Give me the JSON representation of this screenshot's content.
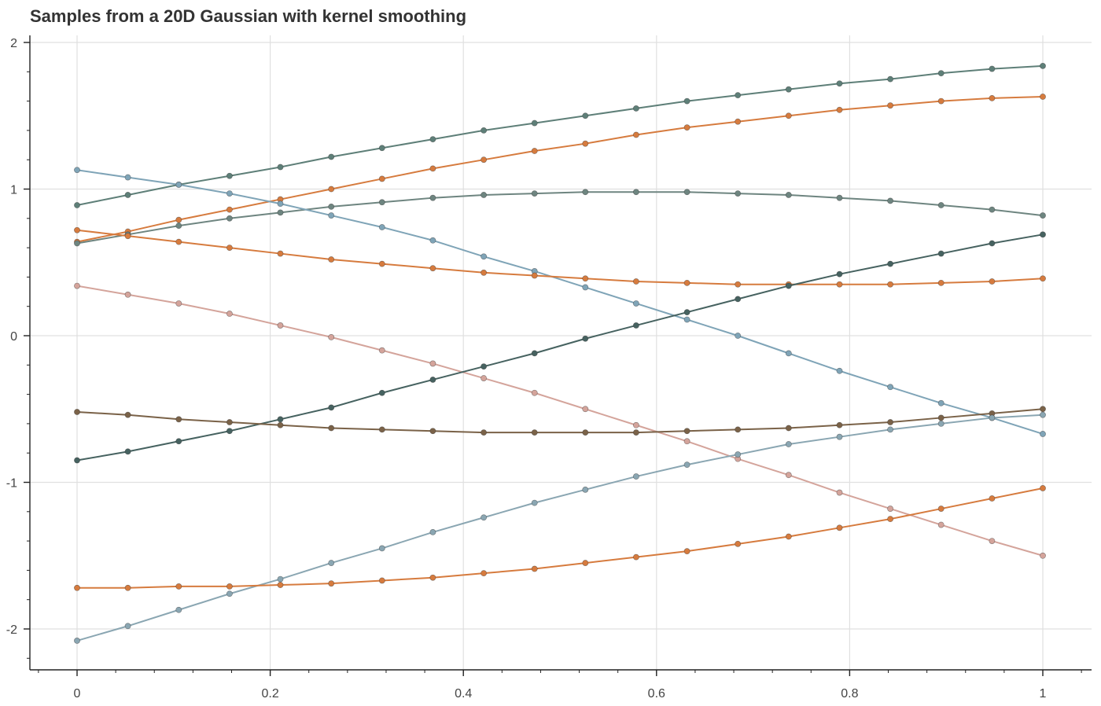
{
  "chart_data": {
    "type": "line",
    "title": "Samples from a 20D Gaussian with kernel smoothing",
    "xlabel": "",
    "ylabel": "",
    "xlim": [
      -0.1,
      1.05
    ],
    "ylim": [
      -2.3,
      2.05
    ],
    "xticks": [
      0,
      0.2,
      0.4,
      0.6,
      0.8,
      1
    ],
    "xtick_labels": [
      "0",
      "0.2",
      "0.4",
      "0.6",
      "0.8",
      "1"
    ],
    "yticks": [
      -2,
      -1,
      0,
      1,
      2
    ],
    "ytick_labels": [
      "-2",
      "-1",
      "0",
      "1",
      "2"
    ],
    "grid": true,
    "x": [
      0,
      0.0526,
      0.1053,
      0.1579,
      0.2105,
      0.2632,
      0.3158,
      0.3684,
      0.4211,
      0.4737,
      0.5263,
      0.5789,
      0.6316,
      0.6842,
      0.7368,
      0.7895,
      0.8421,
      0.8947,
      0.9474,
      1.0
    ],
    "series": [
      {
        "color": "#5e7f78",
        "values": [
          0.89,
          0.96,
          1.03,
          1.09,
          1.15,
          1.22,
          1.28,
          1.34,
          1.4,
          1.45,
          1.5,
          1.55,
          1.6,
          1.64,
          1.68,
          1.72,
          1.75,
          1.79,
          1.82,
          1.84
        ]
      },
      {
        "color": "#d67b3e",
        "values": [
          0.64,
          0.71,
          0.79,
          0.86,
          0.93,
          1.0,
          1.07,
          1.14,
          1.2,
          1.26,
          1.31,
          1.37,
          1.42,
          1.46,
          1.5,
          1.54,
          1.57,
          1.6,
          1.62,
          1.63
        ]
      },
      {
        "color": "#6e8580",
        "values": [
          0.63,
          0.69,
          0.75,
          0.8,
          0.84,
          0.88,
          0.91,
          0.94,
          0.96,
          0.97,
          0.98,
          0.98,
          0.98,
          0.97,
          0.96,
          0.94,
          0.92,
          0.89,
          0.86,
          0.82
        ]
      },
      {
        "color": "#7fa4b7",
        "values": [
          1.13,
          1.08,
          1.03,
          0.97,
          0.9,
          0.82,
          0.74,
          0.65,
          0.54,
          0.44,
          0.33,
          0.22,
          0.11,
          0.0,
          -0.12,
          -0.24,
          -0.35,
          -0.46,
          -0.56,
          -0.67
        ]
      },
      {
        "color": "#d67b3e",
        "values": [
          0.72,
          0.68,
          0.64,
          0.6,
          0.56,
          0.52,
          0.49,
          0.46,
          0.43,
          0.41,
          0.39,
          0.37,
          0.36,
          0.35,
          0.35,
          0.35,
          0.35,
          0.36,
          0.37,
          0.39
        ]
      },
      {
        "color": "#d4a49b",
        "values": [
          0.34,
          0.28,
          0.22,
          0.15,
          0.07,
          -0.01,
          -0.1,
          -0.19,
          -0.29,
          -0.39,
          -0.5,
          -0.61,
          -0.72,
          -0.84,
          -0.95,
          -1.07,
          -1.18,
          -1.29,
          -1.4,
          -1.5
        ]
      },
      {
        "color": "#466260",
        "values": [
          -0.85,
          -0.79,
          -0.72,
          -0.65,
          -0.57,
          -0.49,
          -0.39,
          -0.3,
          -0.21,
          -0.12,
          -0.02,
          0.07,
          0.16,
          0.25,
          0.34,
          0.42,
          0.49,
          0.56,
          0.63,
          0.69
        ]
      },
      {
        "color": "#7a6248",
        "values": [
          -0.52,
          -0.54,
          -0.57,
          -0.59,
          -0.61,
          -0.63,
          -0.64,
          -0.65,
          -0.66,
          -0.66,
          -0.66,
          -0.66,
          -0.65,
          -0.64,
          -0.63,
          -0.61,
          -0.59,
          -0.56,
          -0.53,
          -0.5
        ]
      },
      {
        "color": "#8aa6b2",
        "values": [
          -2.08,
          -1.98,
          -1.87,
          -1.76,
          -1.66,
          -1.55,
          -1.45,
          -1.34,
          -1.24,
          -1.14,
          -1.05,
          -0.96,
          -0.88,
          -0.81,
          -0.74,
          -0.69,
          -0.64,
          -0.6,
          -0.56,
          -0.54
        ]
      },
      {
        "color": "#d67b3e",
        "values": [
          -1.72,
          -1.72,
          -1.71,
          -1.71,
          -1.7,
          -1.69,
          -1.67,
          -1.65,
          -1.62,
          -1.59,
          -1.55,
          -1.51,
          -1.47,
          -1.42,
          -1.37,
          -1.31,
          -1.25,
          -1.18,
          -1.11,
          -1.04
        ]
      }
    ]
  }
}
